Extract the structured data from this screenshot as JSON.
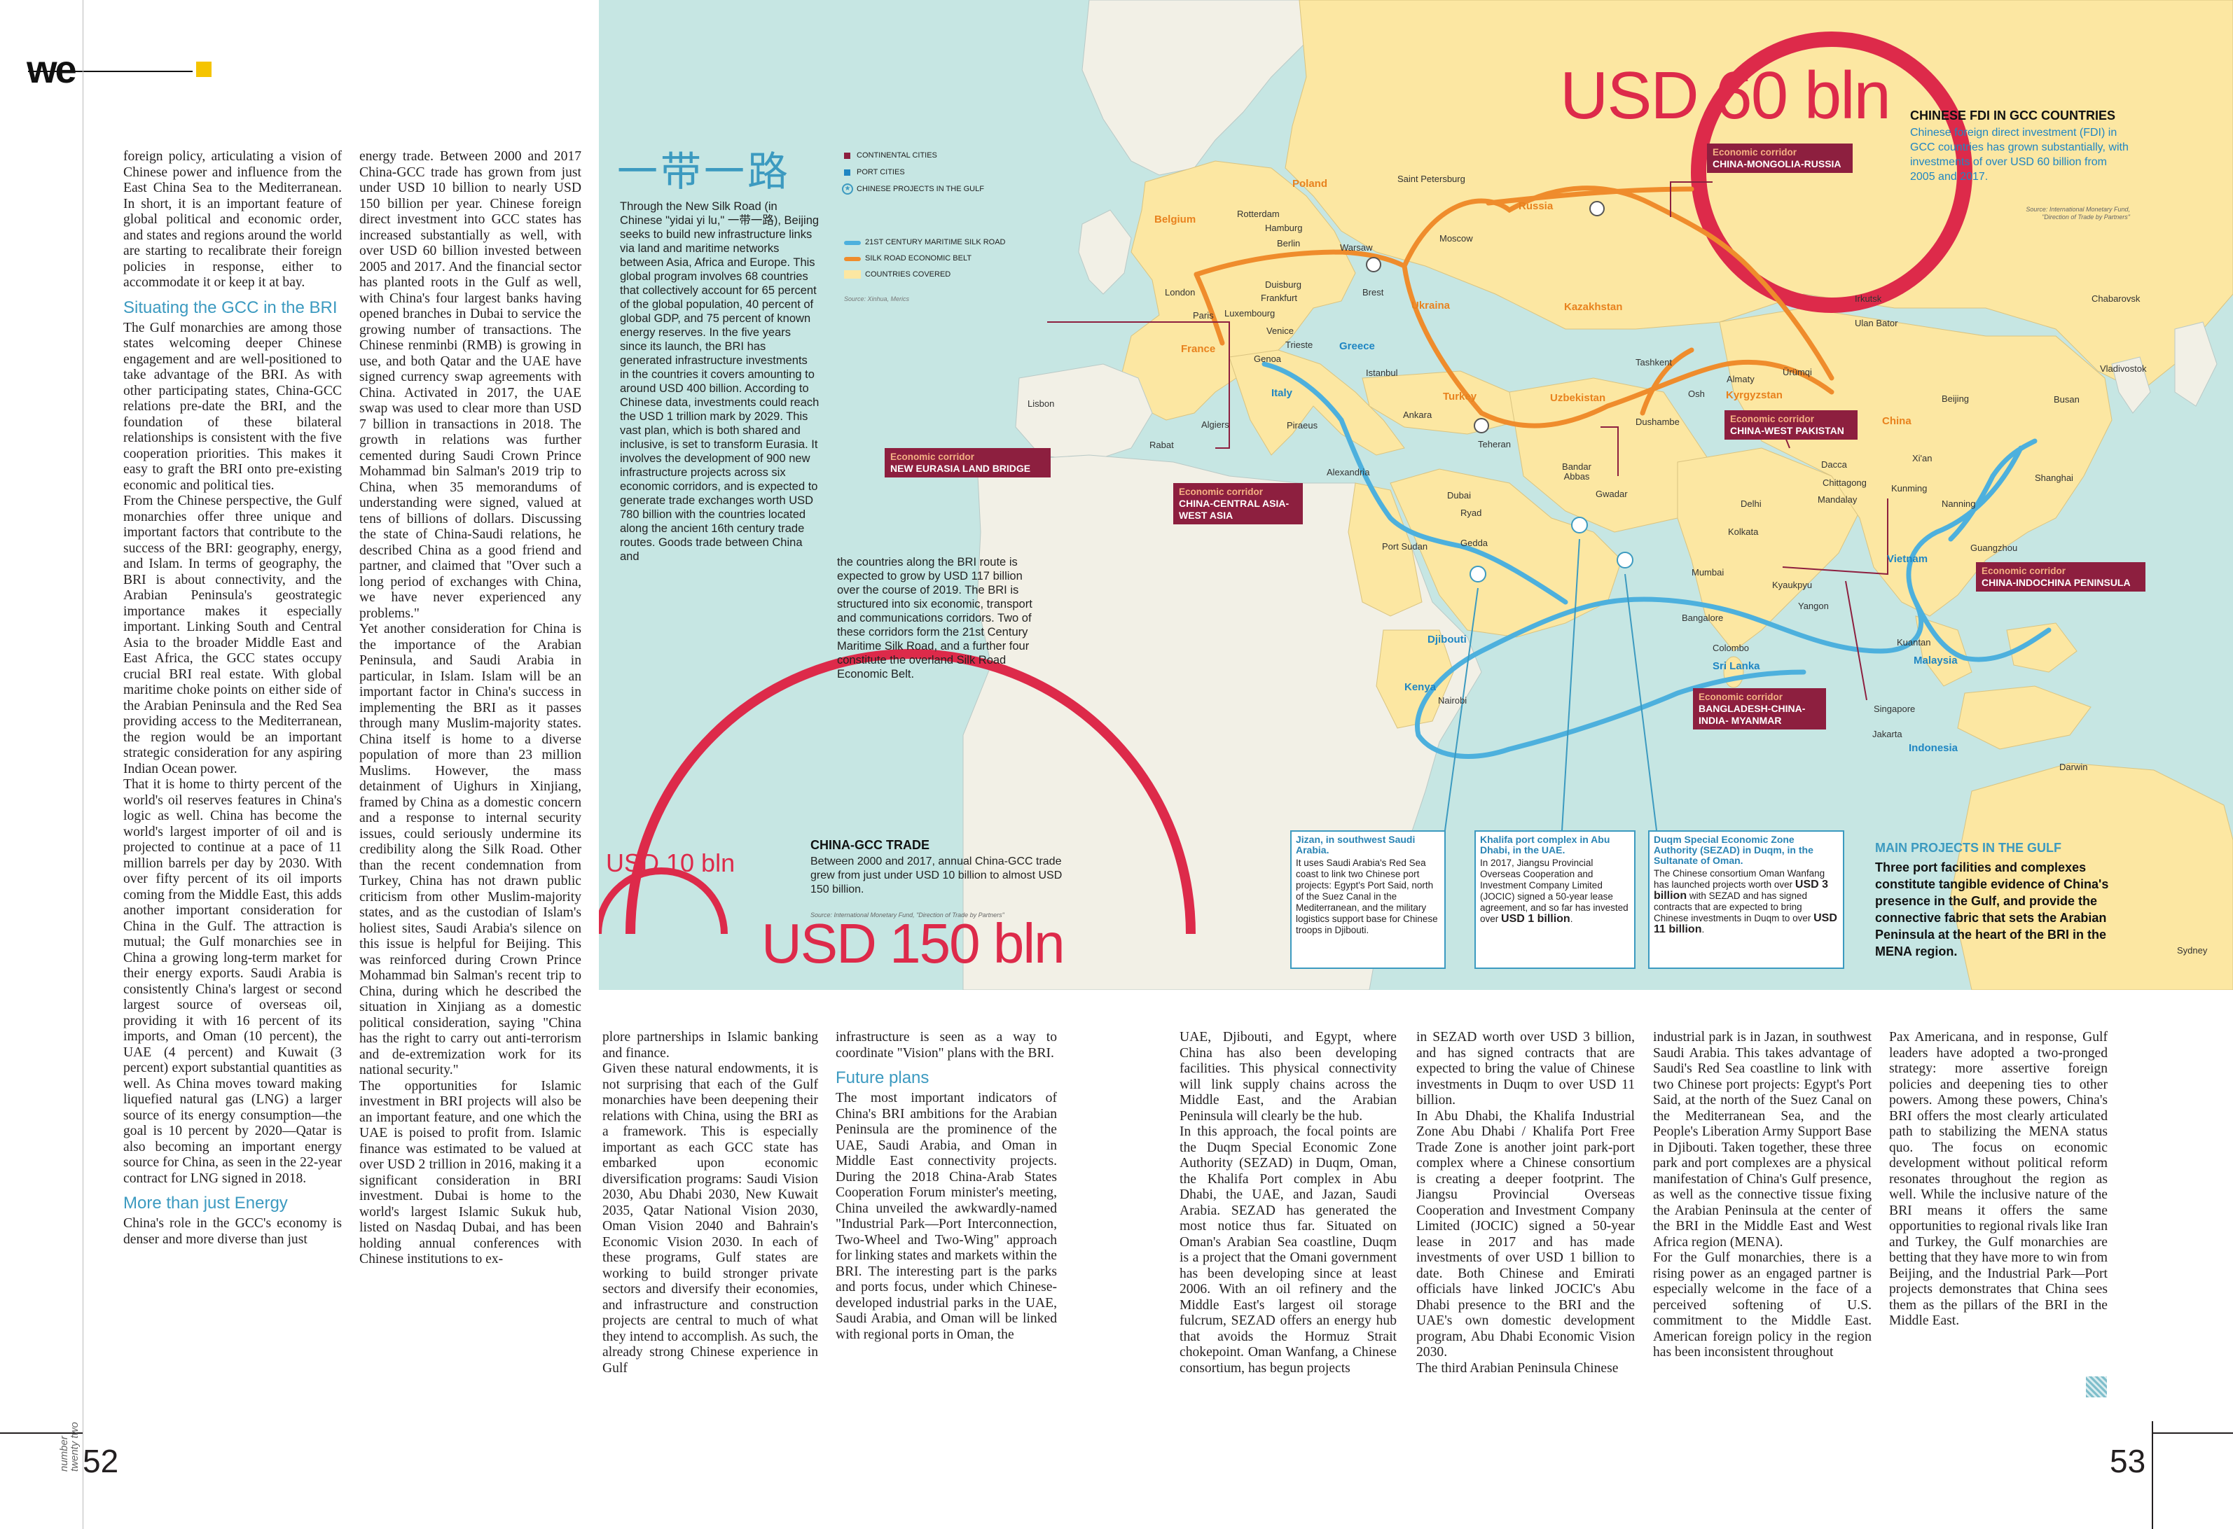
{
  "brand": {
    "logo_text": "we"
  },
  "issue_label": "number twenty two",
  "page_numbers": {
    "left": "52",
    "right": "53"
  },
  "left_article": {
    "col1": [
      {
        "type": "p",
        "text": "foreign policy, articulating a vision of Chinese power and influence from the East China Sea to the Mediterranean. In short, it is an important feature of global political and economic order, and states and regions around the world are starting to recalibrate their foreign policies in response, either to accommodate it or keep it at bay."
      },
      {
        "type": "h",
        "text": "Situating the GCC in the BRI"
      },
      {
        "type": "p",
        "text": "The Gulf monarchies are among those states welcoming deeper Chinese engagement and are well-positioned to take advantage of the BRI. As with other participating states, China-GCC relations pre-date the BRI, and the foundation of these bilateral relationships is consistent with the five cooperation priorities. This makes it easy to graft the BRI onto pre-existing economic and political ties."
      },
      {
        "type": "p",
        "text": "From the Chinese perspective, the Gulf monarchies offer three unique and important factors that contribute to the success of the BRI: geography, energy, and Islam. In terms of geography, the BRI is about connectivity, and the Arabian Peninsula's geostrategic importance makes it especially important. Linking South and Central Asia to the broader Middle East and East Africa, the GCC states occupy crucial BRI real estate. With global maritime choke points on either side of the Arabian Peninsula and the Red Sea providing access to the Mediterranean, the region would be an important strategic consideration for any aspiring Indian Ocean power."
      },
      {
        "type": "p",
        "text": "That it is home to thirty percent of the world's oil reserves features in China's logic as well. China has become the world's largest importer of oil and is projected to continue at a pace of 11 million barrels per day by 2030. With over fifty percent of its oil imports coming from the Middle East, this adds another important consideration for China in the Gulf. The attraction is mutual; the Gulf monarchies see in China a growing long-term market for their energy exports. Saudi Arabia is consistently China's largest or second largest source of overseas oil, providing it with 16 percent of its imports, and Oman (10 percent), the UAE (4 percent) and Kuwait (3 percent) export substantial quantities as well. As China moves toward making liquefied natural gas (LNG) a larger source of its energy consumption—the goal is 10 percent by 2020—Qatar is also becoming an important energy source for China, as seen in the 22-year contract for LNG signed in 2018."
      },
      {
        "type": "h",
        "text": "More than just Energy"
      },
      {
        "type": "p",
        "text": "China's role in the GCC's economy is denser and more diverse than just"
      }
    ],
    "col2": [
      {
        "type": "p",
        "text": "energy trade. Between 2000 and 2017 China-GCC trade has grown from just under USD 10 billion to nearly USD 150 billion per year. Chinese foreign direct investment into GCC states has increased substantially as well, with over USD 60 billion invested between 2005 and 2017. And the financial sector has planted roots in the Gulf as well, with China's four largest banks having opened branches in Dubai to service the growing number of transactions. The Chinese renminbi (RMB) is growing in use, and both Qatar and the UAE have signed currency swap agreements with China. Activated in 2017, the UAE swap was used to clear more than USD 7 billion in transactions in 2018. The growth in relations was further cemented during Saudi Crown Prince Mohammad bin Salman's 2019 trip to China, when 35 memorandums of understanding were signed, valued at tens of billions of dollars. Discussing the state of China-Saudi relations, he described China as a good friend and partner, and claimed that \"Over such a long period of exchanges with China, we have never experienced any problems.\""
      },
      {
        "type": "p",
        "text": "Yet another consideration for China is the importance of the Arabian Peninsula, and Saudi Arabia in particular, in Islam. Islam will be an important factor in China's success in implementing the BRI as it passes through many Muslim-majority states. China itself is home to a diverse population of more than 23 million Muslims. However, the mass detainment of Uighurs in Xinjiang, framed by China as a domestic concern and a response to internal security issues, could seriously undermine its credibility along the Silk Road. Other than the recent condemnation from Turkey, China has not drawn public criticism from other Muslim-majority states, and as the custodian of Islam's holiest sites, Saudi Arabia's silence on this issue is helpful for Beijing. This was reinforced during Crown Prince Mohammad bin Salman's recent trip to China, during which he described the situation in Xinjiang as a domestic political consideration, saying \"China has the right to carry out anti-terrorism and de-extremization work for its national security.\""
      },
      {
        "type": "p",
        "text": "The opportunities for Islamic investment in BRI projects will also be an important feature, and one which the UAE is poised to profit from. Islamic finance was estimated to be valued at over USD 2 trillion in 2016, making it a significant consideration in BRI investment. Dubai is home to the world's largest Islamic Sukuk hub, listed on Nasdaq Dubai, and has been holding annual conferences with Chinese institutions to ex-"
      }
    ],
    "col3": [
      {
        "type": "p",
        "text": "plore partnerships in Islamic banking and finance."
      },
      {
        "type": "p",
        "text": "Given these natural endowments, it is not surprising that each of the Gulf monarchies have been deepening their relations with China, using the BRI as a framework. This is especially important as each GCC state has embarked upon economic diversification programs: Saudi Vision 2030, Abu Dhabi 2030, New Kuwait 2035, Qatar National Vision 2030, Oman Vision 2040 and Bahrain's Economic Vision 2030. In each of these programs, Gulf states are working to build stronger private sectors and diversify their economies, and infrastructure and construction projects are central to much of what they intend to accomplish. As such, the already strong Chinese experience in Gulf"
      }
    ],
    "col4": [
      {
        "type": "p",
        "text": "infrastructure is seen as a way to coordinate \"Vision\" plans with the BRI."
      },
      {
        "type": "h",
        "text": "Future plans"
      },
      {
        "type": "p",
        "text": "The most important indicators of China's BRI ambitions for the Arabian Peninsula are the prominence of the UAE, Saudi Arabia, and Oman in Middle East connectivity projects. During the 2018 China-Arab States Cooperation Forum minister's meeting, China unveiled the awkwardly-named \"Industrial Park—Port Interconnection, Two-Wheel and Two-Wing\" approach for linking states and markets within the BRI. The interesting part is the parks and ports focus, under which Chinese-developed industrial parks in the UAE, Saudi Arabia, and Oman will be linked with regional ports in Oman, the"
      }
    ]
  },
  "right_article": {
    "col5": [
      {
        "type": "p",
        "text": "UAE, Djibouti, and Egypt, where China has also been developing facilities. This physical connectivity will link supply chains across the Middle East, and the Arabian Peninsula will clearly be the hub."
      },
      {
        "type": "p",
        "text": "In this approach, the focal points are the Duqm Special Economic Zone Authority (SEZAD) in Duqm, Oman, the Khalifa Port complex in Abu Dhabi, the UAE, and Jazan, Saudi Arabia. SEZAD has generated the most notice thus far. Situated on Oman's Arabian Sea coastline, Duqm is a project that the Omani government has been developing since at least 2006. With an oil refinery and the Middle East's largest oil storage fulcrum, SEZAD offers an energy hub that avoids the Hormuz Strait chokepoint. Oman Wanfang, a Chinese consortium, has begun projects"
      }
    ],
    "col6": [
      {
        "type": "p",
        "text": "in SEZAD worth over USD 3 billion, and has signed contracts that are expected to bring the value of Chinese investments in Duqm to over USD 11 billion."
      },
      {
        "type": "p",
        "text": "In Abu Dhabi, the Khalifa Industrial Zone Abu Dhabi / Khalifa Port Free Trade Zone is another joint park-port complex where a Chinese consortium is creating a deeper footprint. The Jiangsu Provincial Overseas Cooperation and Investment Company Limited (JOCIC) signed a 50-year lease in 2017 and has made investments of over USD 1 billion to date. Both Chinese and Emirati officials have linked JOCIC's Abu Dhabi presence to the BRI and the UAE's own domestic development program, Abu Dhabi Economic Vision 2030."
      },
      {
        "type": "p",
        "text": "The third Arabian Peninsula Chinese"
      }
    ],
    "col7": [
      {
        "type": "p",
        "text": "industrial park is in Jazan, in southwest Saudi Arabia. This takes advantage of Saudi's Red Sea coastline to link with two Chinese port projects: Egypt's Port Said, at the north of the Suez Canal on the Mediterranean Sea, and the People's Liberation Army Support Base in Djibouti. Taken together, these three park and port complexes are a physical manifestation of China's Gulf presence, as well as the connective tissue fixing the Arabian Peninsula at the center of the BRI in the Middle East and West Africa region (MENA)."
      },
      {
        "type": "p",
        "text": "For the Gulf monarchies, there is a rising power as an engaged partner is especially welcome in the face of a perceived softening of U.S. commitment to the Middle East. American foreign policy in the region has been inconsistent throughout"
      }
    ],
    "col8": [
      {
        "type": "p",
        "text": "Pax Americana, and in response, Gulf leaders have adopted a two-pronged strategy: more assertive foreign policies and deepening ties to other powers. Among these powers, China's BRI offers the most clearly articulated path to stabilizing the MENA status quo. The focus on economic development without political reform resonates throughout the region as well. While the inclusive nature of the BRI means it offers the same opportunities to regional rivals like Iran and Turkey, the Gulf monarchies are betting that they have more to win from Beijing, and the Industrial Park—Port projects demonstrates that China sees them as the pillars of the BRI in the Middle East."
      }
    ]
  },
  "map": {
    "chinese_title": "一带一路",
    "intro_col1": "Through the New Silk Road (in Chinese \"yidai yi lu,\" 一带一路), Beijing seeks to build new infrastructure links via land and maritime networks between Asia, Africa and Europe. This global program involves 68 countries that collectively account for 65 percent of the global population, 40 percent of global GDP, and 75 percent of known energy reserves. In the five years since its launch, the BRI has generated infrastructure investments in the countries it covers amounting to around USD 400 billion. According to Chinese data, investments could reach the USD 1 trillion mark by 2029. This vast plan, which is both shared and inclusive, is set to transform Eurasia. It involves the development of 900 new infrastructure projects across six economic corridors, and is expected to generate trade exchanges worth USD 780 billion with the countries located along the ancient 16th century trade routes. Goods trade between China and",
    "intro_col2": "the countries along the BRI route is expected to grow by USD 117 billion over the course of 2019. The BRI is structured into six economic, transport and communications corridors. Two of these corridors form the 21st Century Maritime Silk Road, and a further four constitute the overland Silk Road Economic Belt.",
    "legend": {
      "continental_cities": "CONTINENTAL CITIES",
      "port_cities": "PORT CITIES",
      "chinese_projects": "CHINESE PROJECTS IN THE GULF",
      "maritime_road": "21ST CENTURY MARITIME SILK ROAD",
      "economic_belt": "SILK ROAD ECONOMIC BELT",
      "countries_covered": "COUNTRIES COVERED",
      "source": "Source: Xinhua, Merics"
    },
    "colors": {
      "sea": "#c6e6e3",
      "land_other": "#f2f0e6",
      "land_covered": "#fce7a2",
      "maritime": "#4db0dd",
      "belt": "#ef8c2c",
      "corridor": "#8d1f3f",
      "headline_red": "#dd2a4a",
      "accent_blue": "#3c9ac0"
    },
    "fdi": {
      "amount": "USD 60 bln",
      "title": "CHINESE FDI IN GCC COUNTRIES",
      "text": "Chinese foreign direct investment (FDI) in GCC countries has grown substantially, with investments of over USD 60 billion from 2005 and 2017.",
      "source": "Source: International Monetary Fund, \"Direction of Trade by Partners\""
    },
    "trade": {
      "small_amount": "USD 10 bln",
      "big_amount": "USD 150 bln",
      "title": "CHINA-GCC TRADE",
      "text": "Between 2000 and 2017, annual China-GCC trade grew from just under USD 10 billion to almost USD 150 billion.",
      "source": "Source: International Monetary Fund, \"Direction of Trade by Partners\""
    },
    "corridors": [
      {
        "heading": "Economic corridor",
        "name": "CHINA-MONGOLIA-RUSSIA"
      },
      {
        "heading": "Economic corridor",
        "name": "NEW EURASIA LAND BRIDGE"
      },
      {
        "heading": "Economic corridor",
        "name": "CHINA-CENTRAL ASIA-WEST ASIA"
      },
      {
        "heading": "Economic corridor",
        "name": "CHINA-WEST PAKISTAN"
      },
      {
        "heading": "Economic corridor",
        "name": "CHINA-INDOCHINA PENINSULA"
      },
      {
        "heading": "Economic corridor",
        "name": "BANGLADESH-CHINA-INDIA- MYANMAR"
      }
    ],
    "boxes": {
      "jizan_title": "Jizan, in southwest Saudi Arabia.",
      "jizan_text": "It uses Saudi Arabia's Red Sea coast to link two Chinese port projects: Egypt's Port Said, north of the Suez Canal in the Mediterranean, and the military logistics support base for Chinese troops in Djibouti.",
      "khalifa_title": "Khalifa port complex in Abu Dhabi, in the UAE.",
      "khalifa_text": "In 2017, Jiangsu Provincial Overseas Cooperation and Investment Company Limited (JOCIC) signed a 50-year lease agreement, and so far has invested over",
      "khalifa_bold": "USD 1 billion",
      "duqm_title": "Duqm Special Economic Zone Authority (SEZAD) in Duqm, in the Sultanate of Oman.",
      "duqm_text1": "The Chinese consortium Oman Wanfang has launched projects worth over",
      "duqm_bold1": "USD 3 billion",
      "duqm_text2": "with SEZAD and has signed contracts that are expected to bring Chinese investments in Duqm to over",
      "duqm_bold2": "USD 11 billion"
    },
    "main_projects": {
      "title": "MAIN PROJECTS IN THE GULF",
      "text": "Three port facilities and complexes constitute tangible evidence of China's presence in the Gulf, and provide the connective fabric that sets the Arabian Peninsula at the heart of the BRI in the MENA region."
    },
    "countries": [
      "Russia",
      "Poland",
      "Belgium",
      "France",
      "Italy",
      "Greece",
      "Ukraina",
      "Turkey",
      "Kazakhstan",
      "Uzbekistan",
      "Kyrgyzstan",
      "China",
      "Vietnam",
      "Malaysia",
      "Indonesia",
      "Sri Lanka",
      "Kenya",
      "Djibouti"
    ],
    "cities": [
      "Saint Petersburg",
      "Moscow",
      "Rotterdam",
      "Hamburg",
      "Berlin",
      "Warsaw",
      "Duisburg",
      "Frankfurt",
      "Brest",
      "London",
      "Paris",
      "Luxembourg",
      "Venice",
      "Trieste",
      "Genoa",
      "Istanbul",
      "Ankara",
      "Lisbon",
      "Algiers",
      "Rabat",
      "Piraeus",
      "Alexandria",
      "Teheran",
      "Tashkent",
      "Almaty",
      "Osh",
      "Ürümqi",
      "Dushambe",
      "Irkutsk",
      "Ulan Bator",
      "Chabarovsk",
      "Vladivostok",
      "Beijing",
      "Busan",
      "Xi'an",
      "Shanghai",
      "Kunming",
      "Nanning",
      "Guangzhou",
      "Dacca",
      "Chittagong",
      "Mandalay",
      "Delhi",
      "Kolkata",
      "Mumbai",
      "Kyaukpyu",
      "Yangon",
      "Bangalore",
      "Colombo",
      "Kuantan",
      "Singapore",
      "Jakarta",
      "Darwin",
      "Sydney",
      "Bandar Abbas",
      "Gwadar",
      "Dubai",
      "Ryad",
      "Gedda",
      "Port Sudan",
      "Nairobi"
    ]
  }
}
